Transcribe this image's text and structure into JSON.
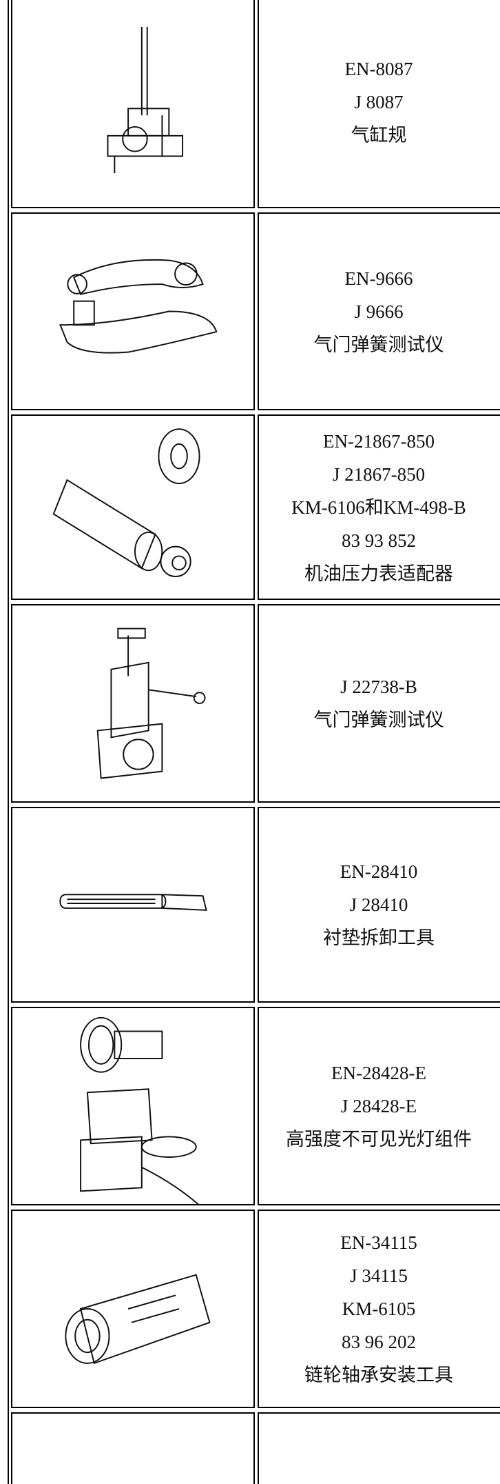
{
  "table": {
    "rows": [
      {
        "lines": [
          "EN-8087",
          "J 8087",
          "气缸规"
        ]
      },
      {
        "lines": [
          "EN-9666",
          "J 9666",
          "气门弹簧测试仪"
        ]
      },
      {
        "lines": [
          "EN-21867-850",
          "J 21867-850",
          "KM-6106和KM-498-B",
          "83 93 852",
          "机油压力表适配器"
        ]
      },
      {
        "lines": [
          "J 22738-B",
          "气门弹簧测试仪"
        ]
      },
      {
        "lines": [
          "EN-28410",
          "J 28410",
          "衬垫拆卸工具"
        ]
      },
      {
        "lines": [
          "EN-28428-E",
          "J 28428-E",
          "高强度不可见光灯组件"
        ]
      },
      {
        "lines": [
          "EN-34115",
          "J 34115",
          "KM-6105",
          "83 96 202",
          "链轮轴承安装工具"
        ]
      }
    ]
  }
}
